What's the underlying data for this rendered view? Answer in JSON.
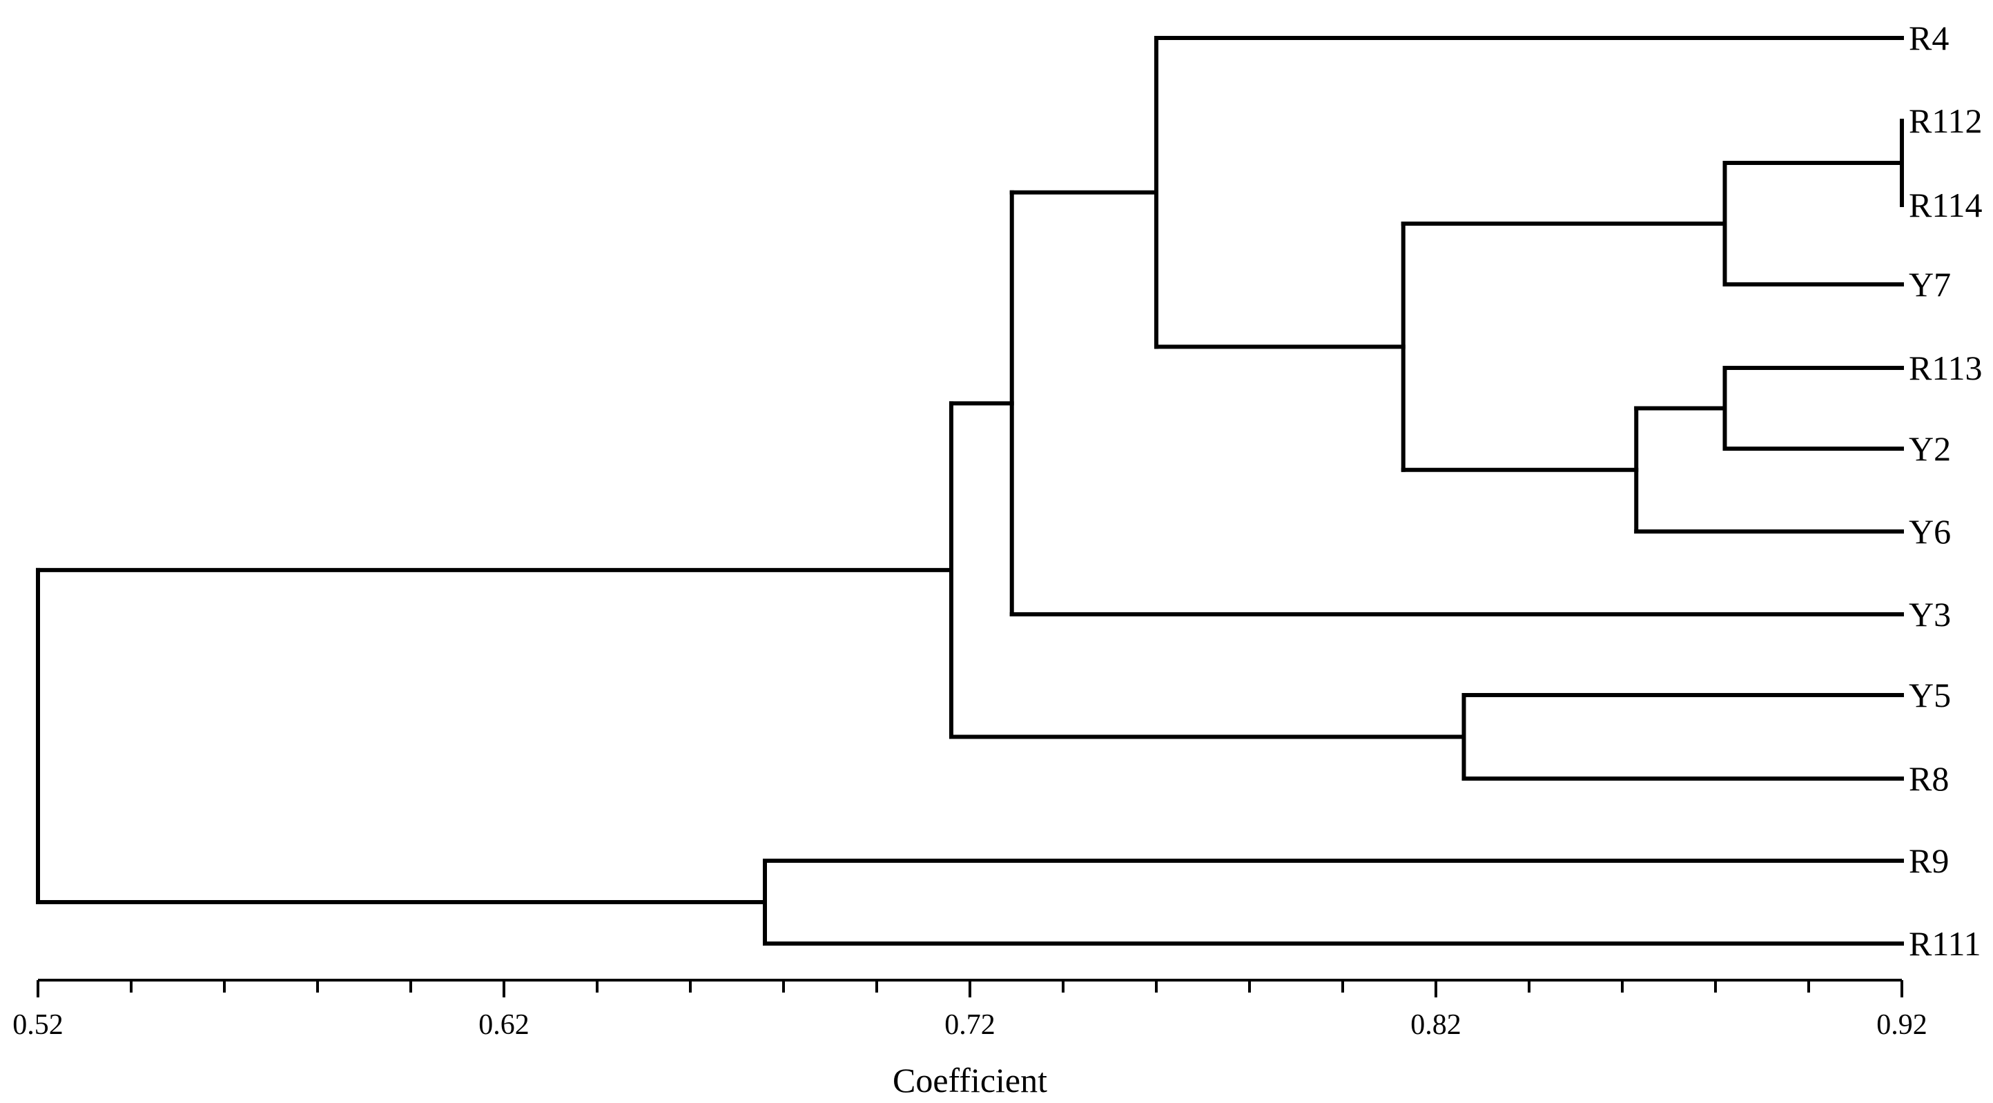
{
  "chart_data": {
    "type": "dendrogram",
    "xlabel": "Coefficient",
    "xlim": [
      0.52,
      0.92
    ],
    "tick_labels": [
      "0.52",
      "0.62",
      "0.72",
      "0.82",
      "0.92"
    ],
    "leaves": [
      "R4",
      "R112",
      "R114",
      "Y7",
      "R113",
      "Y2",
      "Y6",
      "Y3",
      "Y5",
      "R8",
      "R9",
      "R111"
    ],
    "merges": [
      {
        "id": "c1",
        "children": [
          "R112",
          "R114"
        ],
        "height": 0.92
      },
      {
        "id": "c2",
        "children": [
          "c1",
          "Y7"
        ],
        "height": 0.882
      },
      {
        "id": "c3",
        "children": [
          "R113",
          "Y2"
        ],
        "height": 0.882
      },
      {
        "id": "c4",
        "children": [
          "c3",
          "Y6"
        ],
        "height": 0.863
      },
      {
        "id": "c5",
        "children": [
          "c2",
          "c4"
        ],
        "height": 0.813
      },
      {
        "id": "c6",
        "children": [
          "R4",
          "c5"
        ],
        "height": 0.76
      },
      {
        "id": "c7",
        "children": [
          "c6",
          "Y3"
        ],
        "height": 0.729
      },
      {
        "id": "c8",
        "children": [
          "Y5",
          "R8"
        ],
        "height": 0.826
      },
      {
        "id": "c9",
        "children": [
          "c7",
          "c8"
        ],
        "height": 0.716
      },
      {
        "id": "c10",
        "children": [
          "R9",
          "R111"
        ],
        "height": 0.676
      },
      {
        "id": "c11",
        "children": [
          "c9",
          "c10"
        ],
        "height": 0.52
      }
    ]
  }
}
